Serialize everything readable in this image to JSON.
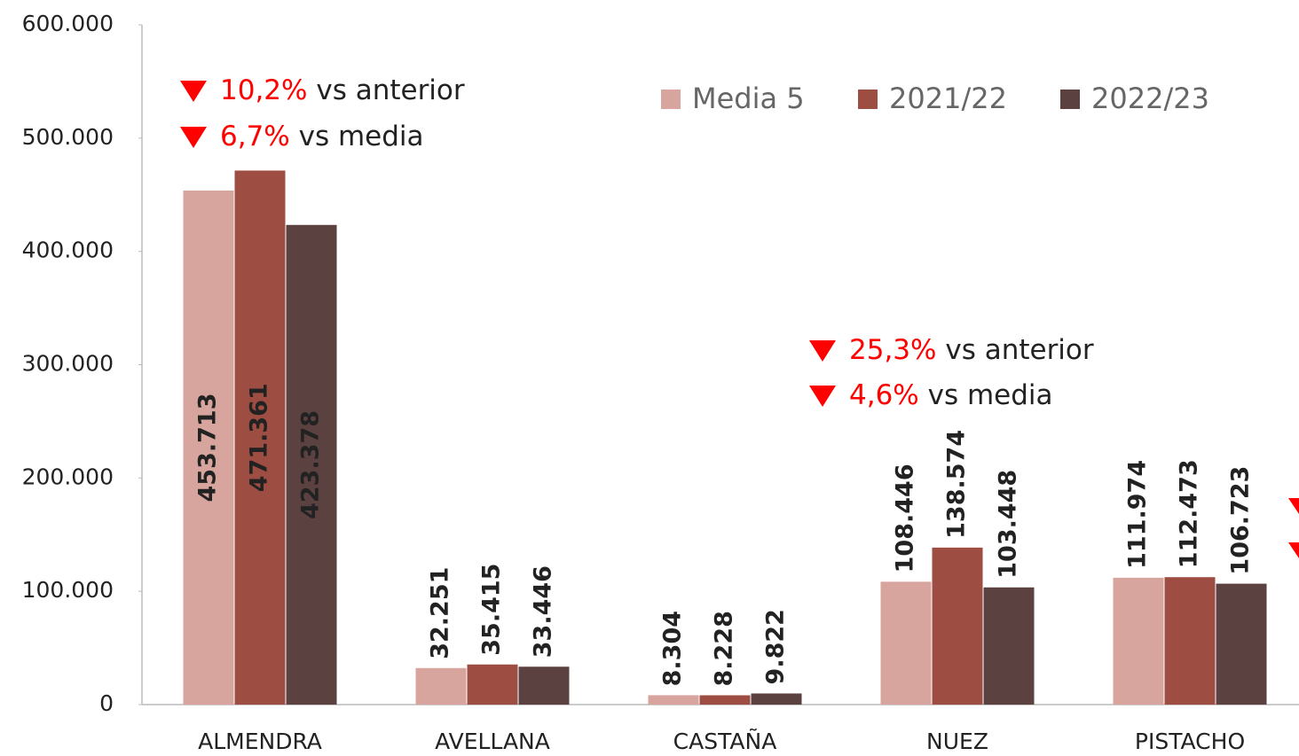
{
  "chart_data": {
    "type": "bar",
    "categories": [
      "ALMENDRA",
      "AVELLANA",
      "CASTAÑA",
      "NUEZ",
      "PISTACHO"
    ],
    "series": [
      {
        "name": "Media 5",
        "color": "#d8a59e",
        "values": [
          453713,
          32251,
          8304,
          108446,
          111974
        ],
        "value_labels": [
          "453.713",
          "32.251",
          "8.304",
          "108.446",
          "111.974"
        ]
      },
      {
        "name": "2021/22",
        "color": "#9e4d43",
        "values": [
          471361,
          35415,
          8228,
          138574,
          112473
        ],
        "value_labels": [
          "471.361",
          "35.415",
          "8.228",
          "138.574",
          "112.473"
        ]
      },
      {
        "name": "2022/23",
        "color": "#5b4240",
        "values": [
          423378,
          33446,
          9822,
          103448,
          106723
        ],
        "value_labels": [
          "423.378",
          "33.446",
          "9.822",
          "103.448",
          "106.723"
        ]
      }
    ],
    "ylim": [
      0,
      600000
    ],
    "yticks": [
      0,
      {
        "value": 100000,
        "label": "100.000"
      },
      {
        "value": 200000,
        "label": "200.000"
      },
      {
        "value": 300000,
        "label": "300.000"
      },
      {
        "value": 400000,
        "label": "400.000"
      },
      {
        "value": 500000,
        "label": "500.000"
      },
      {
        "value": 600000,
        "label": "600.000"
      }
    ],
    "annotations": [
      {
        "pct": "10,2%",
        "text": "vs anterior"
      },
      {
        "pct": "6,7%",
        "text": "vs media"
      },
      {
        "pct": "25,3%",
        "text": "vs anterior"
      },
      {
        "pct": "4,6%",
        "text": "vs media"
      }
    ]
  }
}
